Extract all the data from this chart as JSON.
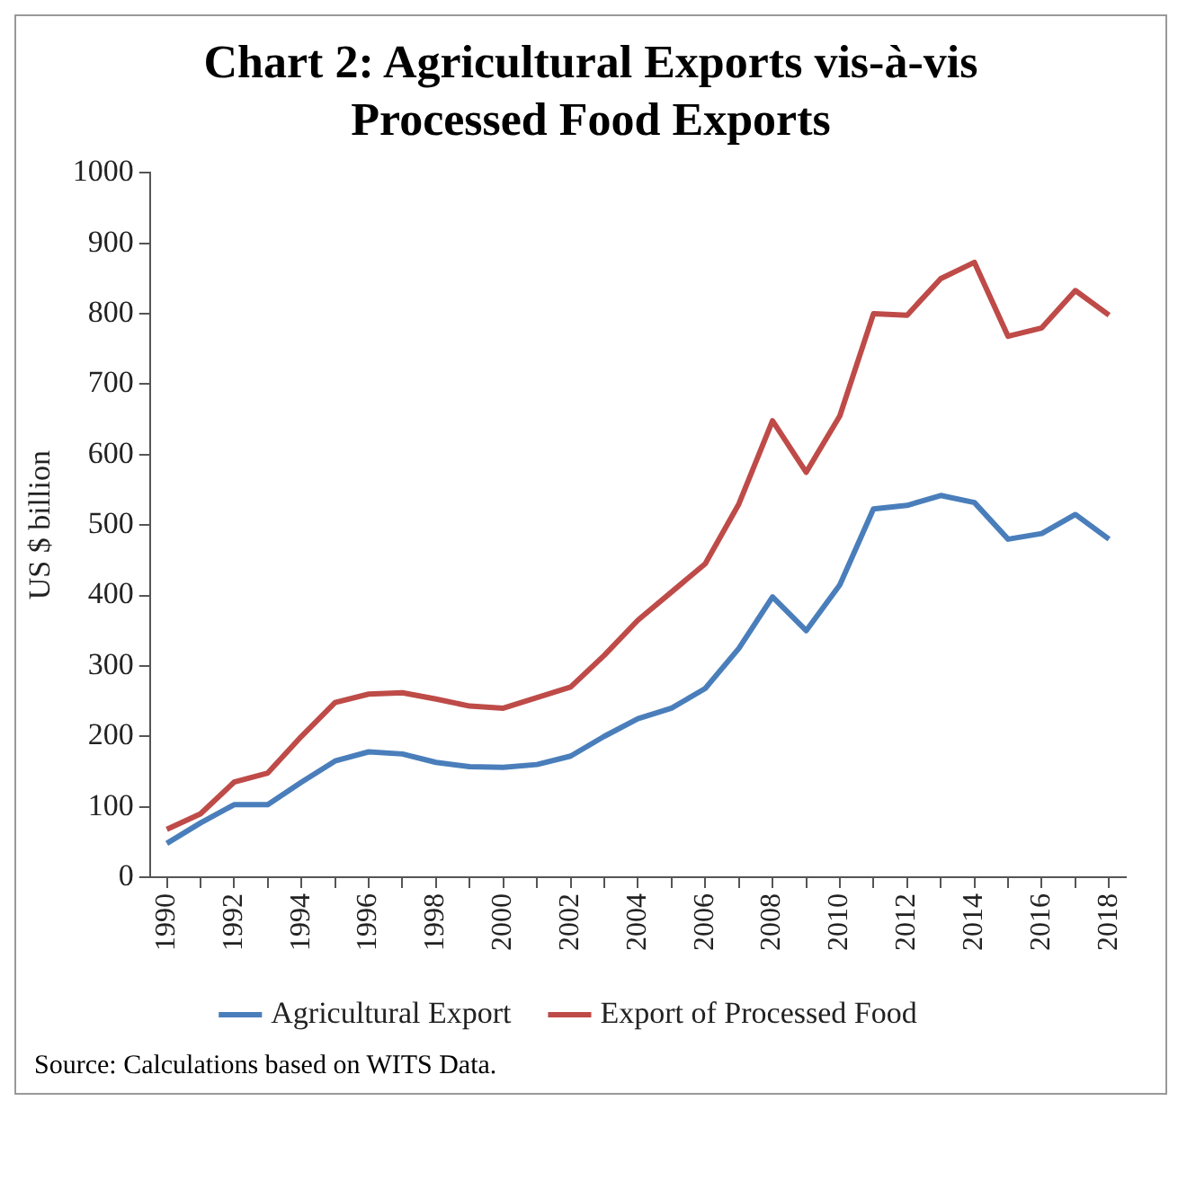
{
  "chart_data": {
    "type": "line",
    "title": "Chart 2: Agricultural Exports vis-à-vis Processed Food Exports",
    "ylabel": "US $ billion",
    "categories": [
      "1990",
      null,
      "1992",
      null,
      "1994",
      null,
      "1996",
      null,
      "1998",
      null,
      "2000",
      null,
      "2002",
      null,
      "2004",
      null,
      "2006",
      null,
      "2008",
      null,
      "2010",
      null,
      "2012",
      null,
      "2014",
      null,
      "2016",
      null,
      "2018"
    ],
    "series": [
      {
        "name": "Agricultural Export",
        "color": "#4a7ebb",
        "values": [
          48,
          77,
          103,
          103,
          135,
          165,
          178,
          175,
          163,
          157,
          156,
          160,
          172,
          200,
          225,
          240,
          268,
          325,
          398,
          350,
          415,
          523,
          528,
          542,
          532,
          480,
          488,
          515,
          480
        ]
      },
      {
        "name": "Export of Processed Food",
        "color": "#be4b48",
        "values": [
          68,
          90,
          135,
          148,
          200,
          248,
          260,
          262,
          253,
          243,
          240,
          255,
          270,
          315,
          365,
          405,
          445,
          530,
          648,
          575,
          655,
          800,
          798,
          850,
          873,
          768,
          780,
          833,
          798
        ]
      }
    ],
    "ylim": [
      0,
      1000
    ],
    "yticks": [
      0,
      100,
      200,
      300,
      400,
      500,
      600,
      700,
      800,
      900,
      1000
    ],
    "grid": false,
    "legend": "bottom",
    "marker": "none",
    "line_style": "solid",
    "annotations": [
      "Source: Calculations based on WITS Data."
    ]
  }
}
